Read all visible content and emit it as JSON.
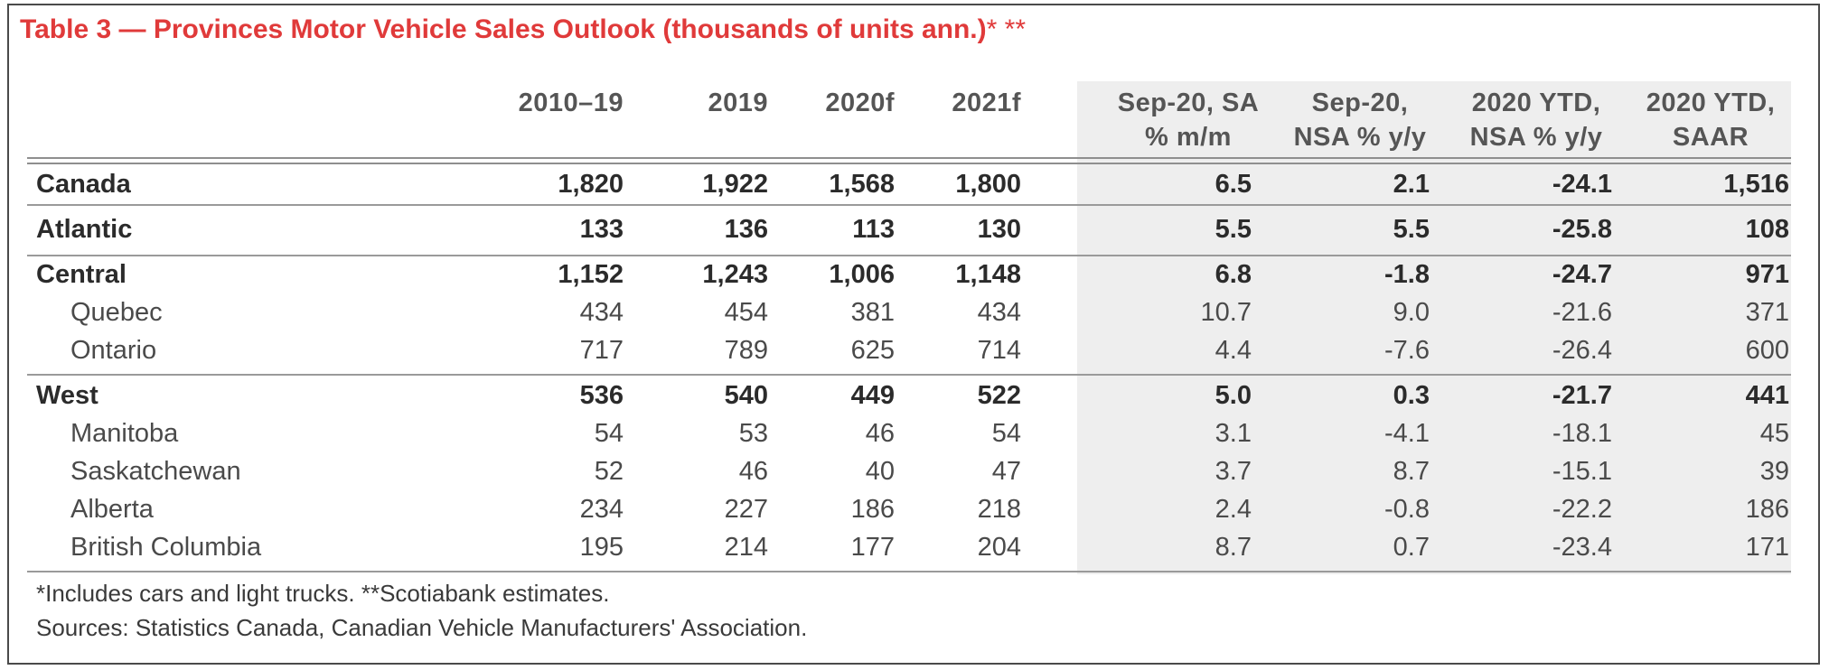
{
  "title": "Table 3 — Provinces Motor Vehicle Sales Outlook (thousands of units ann.)",
  "title_suffix": "* **",
  "columns": [
    {
      "line1": "2010–19",
      "line2": ""
    },
    {
      "line1": "2019",
      "line2": ""
    },
    {
      "line1": "2020f",
      "line2": ""
    },
    {
      "line1": "2021f",
      "line2": ""
    },
    {
      "line1": "Sep-20, SA",
      "line2": "% m/m"
    },
    {
      "line1": "Sep-20,",
      "line2": "NSA % y/y"
    },
    {
      "line1": "2020 YTD,",
      "line2": "NSA % y/y"
    },
    {
      "line1": "2020 YTD,",
      "line2": "SAAR"
    }
  ],
  "rows": [
    {
      "label": "Canada",
      "bold": true,
      "values": [
        "1,820",
        "1,922",
        "1,568",
        "1,800",
        "6.5",
        "2.1",
        "-24.1",
        "1,516"
      ]
    },
    {
      "label": "Atlantic",
      "bold": true,
      "values": [
        "133",
        "136",
        "113",
        "130",
        "5.5",
        "5.5",
        "-25.8",
        "108"
      ]
    },
    {
      "label": "Central",
      "bold": true,
      "values": [
        "1,152",
        "1,243",
        "1,006",
        "1,148",
        "6.8",
        "-1.8",
        "-24.7",
        "971"
      ]
    },
    {
      "label": "Quebec",
      "bold": false,
      "values": [
        "434",
        "454",
        "381",
        "434",
        "10.7",
        "9.0",
        "-21.6",
        "371"
      ]
    },
    {
      "label": "Ontario",
      "bold": false,
      "values": [
        "717",
        "789",
        "625",
        "714",
        "4.4",
        "-7.6",
        "-26.4",
        "600"
      ]
    },
    {
      "label": "West",
      "bold": true,
      "values": [
        "536",
        "540",
        "449",
        "522",
        "5.0",
        "0.3",
        "-21.7",
        "441"
      ]
    },
    {
      "label": "Manitoba",
      "bold": false,
      "values": [
        "54",
        "53",
        "46",
        "54",
        "3.1",
        "-4.1",
        "-18.1",
        "45"
      ]
    },
    {
      "label": "Saskatchewan",
      "bold": false,
      "values": [
        "52",
        "46",
        "40",
        "47",
        "3.7",
        "8.7",
        "-15.1",
        "39"
      ]
    },
    {
      "label": "Alberta",
      "bold": false,
      "values": [
        "234",
        "227",
        "186",
        "218",
        "2.4",
        "-0.8",
        "-22.2",
        "186"
      ]
    },
    {
      "label": "British Columbia",
      "bold": false,
      "values": [
        "195",
        "214",
        "177",
        "204",
        "8.7",
        "0.7",
        "-23.4",
        "171"
      ]
    }
  ],
  "footnotes": {
    "note1": "*Includes cars and light trucks. **Scotiabank estimates.",
    "note2": "Sources: Statistics Canada, Canadian Vehicle Manufacturers' Association."
  },
  "colors": {
    "title": "#e03a3a",
    "shade": "#eeeeee",
    "rule": "#9a9a9a"
  }
}
